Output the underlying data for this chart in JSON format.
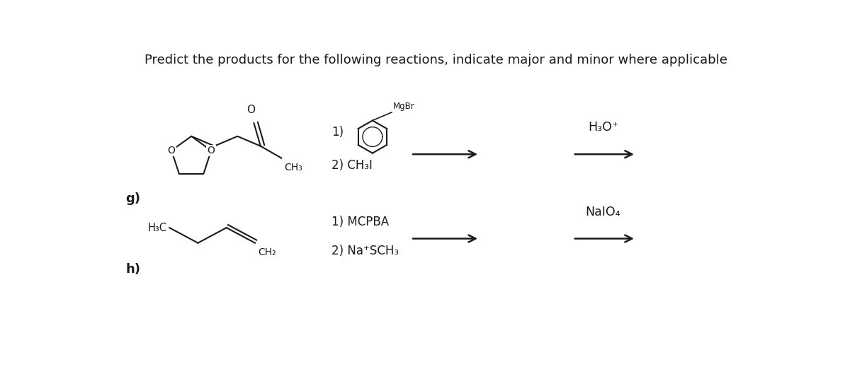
{
  "title": "Predict the products for the following reactions, indicate major and minor where applicable",
  "title_fontsize": 13,
  "bg_color": "#ffffff",
  "text_color": "#1a1a1a",
  "figsize": [
    12.0,
    5.22
  ],
  "dpi": 100,
  "label_g": "g)",
  "label_h": "h)",
  "reagent_h3o": "H₃O⁺",
  "reagent_naio4": "NaIO₄"
}
